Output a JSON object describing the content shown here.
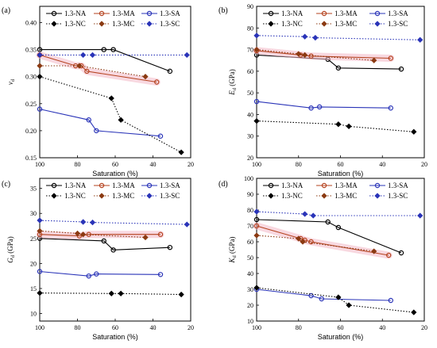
{
  "colors": {
    "NA": "#000000",
    "MA": "#b5431f",
    "SA": "#2a34b8",
    "NC": "#000000",
    "MC": "#8b3a12",
    "SC": "#2a34b8"
  },
  "legend_labels": [
    "1.3-NA",
    "1.3-MA",
    "1.3-SA",
    "1.3-NC",
    "1.3-MC",
    "1.3-SC"
  ],
  "chart_data": [
    {
      "type": "line",
      "panel_label": "(a)",
      "ylabel": "ν_d",
      "xlabel": "Saturation (%)",
      "xlim": [
        100,
        20
      ],
      "xticks": [
        100,
        80,
        60,
        40,
        20
      ],
      "ylim": [
        0.15,
        0.43
      ],
      "yticks": [
        0.15,
        0.2,
        0.25,
        0.3,
        0.35,
        0.4
      ],
      "ytick_labels": [
        "0.15",
        "0.20",
        "0.25",
        "0.30",
        "0.35",
        "0.40"
      ],
      "series": [
        {
          "name": "1.3-NA",
          "x": [
            100,
            66,
            61,
            31
          ],
          "y": [
            0.35,
            0.35,
            0.35,
            0.31
          ]
        },
        {
          "name": "1.3-MA",
          "x": [
            100,
            81,
            78,
            75,
            38
          ],
          "y": [
            0.34,
            0.32,
            0.32,
            0.31,
            0.29
          ]
        },
        {
          "name": "1.3-SA",
          "x": [
            100,
            74,
            70,
            36
          ],
          "y": [
            0.24,
            0.22,
            0.2,
            0.19
          ]
        },
        {
          "name": "1.3-NC",
          "x": [
            100,
            62,
            57,
            25
          ],
          "y": [
            0.3,
            0.26,
            0.22,
            0.16
          ]
        },
        {
          "name": "1.3-MC",
          "x": [
            100,
            79,
            44
          ],
          "y": [
            0.32,
            0.32,
            0.3
          ]
        },
        {
          "name": "1.3-SC",
          "x": [
            100,
            77,
            72,
            22
          ],
          "y": [
            0.34,
            0.34,
            0.34,
            0.34
          ]
        }
      ]
    },
    {
      "type": "line",
      "panel_label": "(b)",
      "ylabel": "E_d (GPa)",
      "xlabel": "Saturation (%)",
      "xlim": [
        100,
        20
      ],
      "xticks": [
        100,
        80,
        60,
        40,
        20
      ],
      "ylim": [
        20,
        90
      ],
      "yticks": [
        20,
        30,
        40,
        50,
        60,
        70,
        80,
        90
      ],
      "ytick_labels": [
        "20",
        "30",
        "40",
        "50",
        "60",
        "70",
        "80",
        "90"
      ],
      "series": [
        {
          "name": "1.3-NA",
          "x": [
            100,
            66,
            61,
            31
          ],
          "y": [
            67.5,
            65.5,
            61.5,
            61
          ]
        },
        {
          "name": "1.3-MA",
          "x": [
            100,
            79,
            74,
            36
          ],
          "y": [
            69.5,
            67.5,
            67,
            66
          ]
        },
        {
          "name": "1.3-SA",
          "x": [
            100,
            74,
            70,
            36
          ],
          "y": [
            46,
            43,
            43.5,
            43
          ]
        },
        {
          "name": "1.3-NC",
          "x": [
            100,
            61,
            56,
            25
          ],
          "y": [
            37,
            35.5,
            34.5,
            32
          ]
        },
        {
          "name": "1.3-MC",
          "x": [
            100,
            80,
            77,
            44
          ],
          "y": [
            70,
            68,
            67.5,
            65
          ]
        },
        {
          "name": "1.3-SC",
          "x": [
            100,
            77,
            72,
            22
          ],
          "y": [
            76.5,
            76,
            75.5,
            74.5
          ]
        }
      ]
    },
    {
      "type": "line",
      "panel_label": "(c)",
      "ylabel": "G_d (GPa)",
      "xlabel": "Saturation (%)",
      "xlim": [
        100,
        20
      ],
      "xticks": [
        100,
        80,
        60,
        40,
        20
      ],
      "ylim": [
        8.5,
        37
      ],
      "yticks": [
        10,
        15,
        20,
        25,
        30,
        35
      ],
      "ytick_labels": [
        "10",
        "15",
        "20",
        "25",
        "30",
        "35"
      ],
      "series": [
        {
          "name": "1.3-NA",
          "x": [
            100,
            66,
            61,
            31
          ],
          "y": [
            25,
            24.5,
            22.7,
            23.2
          ]
        },
        {
          "name": "1.3-MA",
          "x": [
            100,
            79,
            74,
            36
          ],
          "y": [
            25.8,
            25.5,
            25.8,
            25.8
          ]
        },
        {
          "name": "1.3-SA",
          "x": [
            100,
            74,
            70,
            36
          ],
          "y": [
            18.4,
            17.5,
            17.9,
            17.8
          ]
        },
        {
          "name": "1.3-NC",
          "x": [
            100,
            62,
            57,
            25
          ],
          "y": [
            14.1,
            14.0,
            14.0,
            13.8
          ]
        },
        {
          "name": "1.3-MC",
          "x": [
            100,
            80,
            77,
            44
          ],
          "y": [
            26.5,
            26.0,
            25.8,
            25.2
          ]
        },
        {
          "name": "1.3-SC",
          "x": [
            100,
            77,
            72,
            22
          ],
          "y": [
            28.6,
            28.3,
            28.2,
            27.8
          ]
        }
      ]
    },
    {
      "type": "line",
      "panel_label": "(d)",
      "ylabel": "K_d (GPa)",
      "xlabel": "Saturation (%)",
      "xlim": [
        100,
        20
      ],
      "xticks": [
        100,
        80,
        60,
        40,
        20
      ],
      "ylim": [
        10,
        100
      ],
      "yticks": [
        10,
        20,
        30,
        40,
        50,
        60,
        70,
        80,
        90,
        100
      ],
      "ytick_labels": [
        "10",
        "20",
        "30",
        "40",
        "50",
        "60",
        "70",
        "80",
        "90",
        "100"
      ],
      "series": [
        {
          "name": "1.3-NA",
          "x": [
            100,
            66,
            61,
            31
          ],
          "y": [
            74,
            72.5,
            69,
            53
          ]
        },
        {
          "name": "1.3-MA",
          "x": [
            100,
            79,
            77,
            74,
            37
          ],
          "y": [
            70,
            62,
            61,
            60,
            51.5
          ]
        },
        {
          "name": "1.3-SA",
          "x": [
            100,
            74,
            69,
            36
          ],
          "y": [
            30,
            26,
            24,
            23
          ]
        },
        {
          "name": "1.3-NC",
          "x": [
            100,
            61,
            56,
            25
          ],
          "y": [
            31,
            25,
            20,
            15.5
          ]
        },
        {
          "name": "1.3-MC",
          "x": [
            100,
            80,
            78,
            44
          ],
          "y": [
            64,
            62,
            60,
            54
          ]
        },
        {
          "name": "1.3-SC",
          "x": [
            100,
            77,
            73,
            22
          ],
          "y": [
            79,
            77.5,
            76.5,
            76.5
          ]
        }
      ]
    }
  ]
}
